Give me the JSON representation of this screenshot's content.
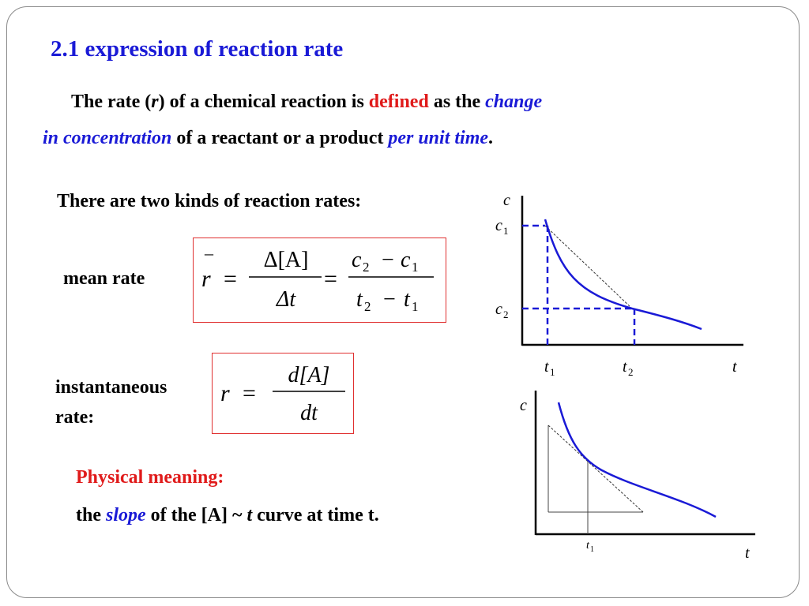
{
  "slide": {
    "title": "2.1 expression of reaction rate",
    "definition": {
      "prefix": "The rate (",
      "r": "r",
      "mid": ") of a chemical reaction is ",
      "defined": "defined",
      "as_the": " as the ",
      "change": "change",
      "in_concentration": "in concentration",
      "of_reactant": " of a reactant or a product ",
      "per_unit_time": "per unit time",
      "period": "."
    },
    "kinds_heading": "There are two kinds of reaction rates:",
    "mean_rate_label": "mean rate",
    "instantaneous_label_line1": "instantaneous",
    "instantaneous_label_line2": "rate:",
    "physical_meaning": "Physical meaning:",
    "slope_sentence": {
      "the": "the ",
      "slope": "slope",
      "of_the": " of the [A] ~ ",
      "t": "t",
      "rest": " curve at time t."
    }
  },
  "formulas": {
    "mean": {
      "lhs": "r",
      "bar": "–",
      "eq": "=",
      "num1": "Δ[A]",
      "den1": "Δt",
      "num2_c2": "c",
      "num2_c2_sub": "2",
      "num2_minus": "−",
      "num2_c1": "c",
      "num2_c1_sub": "1",
      "den2_t2": "t",
      "den2_t2_sub": "2",
      "den2_minus": "−",
      "den2_t1": "t",
      "den2_t1_sub": "1"
    },
    "instant": {
      "lhs": "r",
      "eq": "=",
      "num": "d[A]",
      "den": "dt"
    }
  },
  "graphs": {
    "top": {
      "y_axis": "c",
      "x_axis": "t",
      "c1": "c",
      "c1_sub": "1",
      "c2": "c",
      "c2_sub": "2",
      "t1": "t",
      "t1_sub": "1",
      "t2": "t",
      "t2_sub": "2"
    },
    "bottom": {
      "y_axis": "c",
      "x_axis": "t",
      "t1": "t",
      "t1_sub": "1"
    }
  },
  "colors": {
    "curve": "#1a1ad6",
    "accent_red": "#e01b1b",
    "box_border": "#e03030",
    "dashed": "#1a1ad6"
  }
}
